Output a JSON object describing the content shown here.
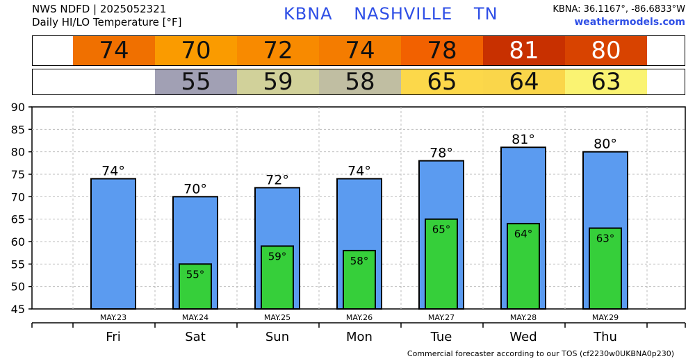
{
  "header": {
    "line1": "NWS NDFD | 2025052321",
    "line2": "Daily HI/LO Temperature [°F]",
    "station": "KBNA",
    "city": "NASHVILLE",
    "state": "TN",
    "coords": "KBNA: 36.1167°, -86.6833°W",
    "site": "weathermodels.com"
  },
  "footer": "Commercial forecaster according to our TOS (cf2230w0UKBNA0p230)",
  "colors": {
    "hi_bar": "#5b9bf0",
    "lo_bar": "#36cf3a",
    "hi_strip": [
      "#f07000",
      "#fa9b00",
      "#f88a00",
      "#f47c00",
      "#f26100",
      "#c83000",
      "#d84300"
    ],
    "lo_strip": [
      "#a1a0b4",
      "#d1d19a",
      "#c0bea2",
      "#fcd84a",
      "#fad64a",
      "#faf372"
    ]
  },
  "chart_data": {
    "type": "bar",
    "categories": [
      "Fri",
      "Sat",
      "Sun",
      "Mon",
      "Tue",
      "Wed",
      "Thu"
    ],
    "dates": [
      "MAY.23",
      "MAY.24",
      "MAY.25",
      "MAY.26",
      "MAY.27",
      "MAY.28",
      "MAY.29"
    ],
    "series": [
      {
        "values": [
          74,
          70,
          72,
          74,
          78,
          81,
          80
        ]
      },
      {
        "values": [
          null,
          55,
          59,
          58,
          65,
          64,
          63
        ]
      }
    ],
    "hi_labels": [
      "74°",
      "70°",
      "72°",
      "74°",
      "78°",
      "81°",
      "80°"
    ],
    "lo_labels": [
      "",
      "55°",
      "59°",
      "58°",
      "65°",
      "64°",
      "63°"
    ],
    "hi_strip_values": [
      "74",
      "70",
      "72",
      "74",
      "78",
      "81",
      "80"
    ],
    "lo_strip_values": [
      "",
      "55",
      "59",
      "58",
      "65",
      "64",
      "63"
    ],
    "ylim": [
      45,
      90
    ],
    "yticks": [
      "45",
      "50",
      "55",
      "60",
      "65",
      "70",
      "75",
      "80",
      "85",
      "90"
    ],
    "grid": true
  }
}
